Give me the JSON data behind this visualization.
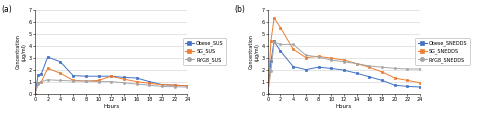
{
  "hours": [
    0,
    0.5,
    1,
    2,
    4,
    6,
    8,
    10,
    12,
    14,
    16,
    18,
    20,
    22,
    24
  ],
  "sus": {
    "obese": [
      0,
      1.55,
      1.65,
      3.05,
      2.65,
      1.5,
      1.45,
      1.45,
      1.45,
      1.35,
      1.3,
      1.0,
      0.75,
      0.7,
      0.65
    ],
    "sg": [
      0,
      0.9,
      1.0,
      2.1,
      1.7,
      1.1,
      1.05,
      1.1,
      1.45,
      1.2,
      1.0,
      0.85,
      0.75,
      0.7,
      0.65
    ],
    "ryg8": [
      0,
      0.8,
      1.0,
      1.15,
      1.1,
      1.05,
      1.05,
      1.0,
      1.0,
      0.9,
      0.8,
      0.7,
      0.6,
      0.57,
      0.55
    ]
  },
  "snedds": {
    "obese": [
      0,
      2.7,
      4.35,
      3.55,
      2.25,
      2.0,
      2.2,
      2.1,
      1.95,
      1.7,
      1.4,
      1.1,
      0.7,
      0.6,
      0.55
    ],
    "sg": [
      0,
      4.4,
      6.3,
      5.5,
      3.7,
      3.0,
      3.1,
      2.95,
      2.8,
      2.5,
      2.2,
      1.8,
      1.3,
      1.1,
      0.9
    ],
    "ryg8": [
      0,
      1.9,
      4.3,
      4.1,
      4.1,
      3.2,
      3.05,
      2.8,
      2.65,
      2.5,
      2.3,
      2.2,
      2.1,
      2.05,
      2.05
    ]
  },
  "colors": {
    "obese": "#4472c4",
    "sg": "#ed7d31",
    "ryg8": "#a5a5a5"
  },
  "sus_labels": [
    "Obese_SUS",
    "SG_SUS",
    "RYG8_SUS"
  ],
  "snedds_labels": [
    "Obese_SNEDDS",
    "SG_SNEDDS",
    "RYG8_SNEDDS"
  ],
  "ylabel": "Concentration\n(μg/ml)",
  "xlabel": "Hours",
  "ylim": [
    0,
    7
  ],
  "yticks": [
    0,
    1,
    2,
    3,
    4,
    5,
    6,
    7
  ],
  "xticks": [
    0,
    2,
    4,
    6,
    8,
    10,
    12,
    14,
    16,
    18,
    20,
    22,
    24
  ],
  "panel_a": "(a)",
  "panel_b": "(b)"
}
